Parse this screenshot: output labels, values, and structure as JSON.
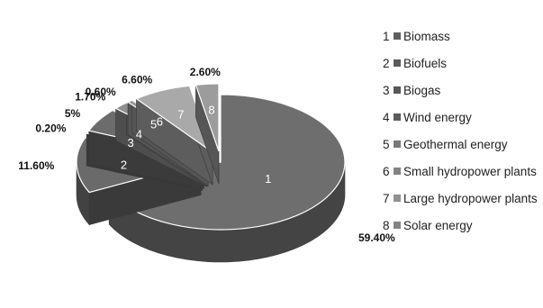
{
  "chart_data": {
    "type": "pie",
    "slices": [
      {
        "id": "1",
        "label": "Biomass",
        "value": 59.4,
        "value_label": "59.40%",
        "color": "#6e6e6e"
      },
      {
        "id": "2",
        "label": "Biofuels",
        "value": 11.6,
        "value_label": "11.60%",
        "color": "#6a6a6a"
      },
      {
        "id": "3",
        "label": "Biogas",
        "value": 0.2,
        "value_label": "0.20%",
        "color": "#666666"
      },
      {
        "id": "4",
        "label": "Wind energy",
        "value": 5,
        "value_label": "5%",
        "color": "#6c6c6c"
      },
      {
        "id": "5",
        "label": "Geothermal energy",
        "value": 1.7,
        "value_label": "1.70%",
        "color": "#8e8e8e"
      },
      {
        "id": "6",
        "label": "Small hydropower plants",
        "value": 0.6,
        "value_label": "0.60%",
        "color": "#9a9a9a"
      },
      {
        "id": "7",
        "label": "Large hydropower plants",
        "value": 6.6,
        "value_label": "6.60%",
        "color": "#a9a9a9"
      },
      {
        "id": "8",
        "label": "Solar energy",
        "value": 2.6,
        "value_label": "2.60%",
        "color": "#9c9c9c"
      }
    ],
    "legend_position": "right"
  }
}
